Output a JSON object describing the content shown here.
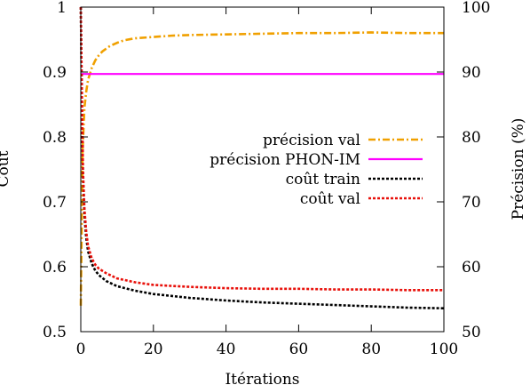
{
  "chart_data": {
    "type": "line",
    "title": "",
    "xlabel": "Itérations",
    "ylabel": "Coût",
    "y2label": "Précision (%)",
    "xlim": [
      0,
      100
    ],
    "ylim": [
      0.5,
      1.0
    ],
    "y2lim": [
      50,
      100
    ],
    "xticks": [
      "0",
      "20",
      "40",
      "60",
      "80",
      "100"
    ],
    "yticks": [
      "0.5",
      "0.6",
      "0.7",
      "0.8",
      "0.9",
      "1"
    ],
    "y2ticks": [
      "50",
      "60",
      "70",
      "80",
      "90",
      "100"
    ],
    "grid": false,
    "legend_position": "center-right",
    "series": [
      {
        "name": "précision val",
        "axis": "y2",
        "color": "#f0a000",
        "dash": "dashdot",
        "x": [
          0,
          0.5,
          1,
          1.5,
          2,
          3,
          4,
          5,
          6,
          8,
          10,
          12,
          15,
          20,
          25,
          30,
          40,
          50,
          60,
          70,
          80,
          90,
          100
        ],
        "y": [
          54,
          78,
          84.5,
          87,
          88.8,
          90.6,
          91.8,
          92.6,
          93.2,
          94.0,
          94.5,
          94.9,
          95.2,
          95.4,
          95.6,
          95.7,
          95.8,
          95.9,
          96.0,
          96.0,
          96.1,
          96.0,
          96.0
        ]
      },
      {
        "name": "précision PHON-IM",
        "axis": "y2",
        "color": "#ff00ff",
        "dash": "solid",
        "x": [
          0,
          100
        ],
        "y": [
          89.7,
          89.7
        ]
      },
      {
        "name": "coût train",
        "axis": "y",
        "color": "#000000",
        "dash": "dotted",
        "x": [
          0,
          0.3,
          0.6,
          1,
          1.5,
          2,
          3,
          4,
          5,
          7,
          10,
          15,
          20,
          30,
          40,
          50,
          60,
          70,
          80,
          90,
          100
        ],
        "y": [
          1.0,
          0.85,
          0.74,
          0.68,
          0.645,
          0.624,
          0.605,
          0.594,
          0.587,
          0.578,
          0.57,
          0.563,
          0.558,
          0.552,
          0.548,
          0.545,
          0.543,
          0.541,
          0.539,
          0.537,
          0.536
        ]
      },
      {
        "name": "coût val",
        "axis": "y",
        "color": "#e8100a",
        "dash": "dotted",
        "x": [
          0,
          0.3,
          0.6,
          1,
          1.5,
          2,
          3,
          4,
          5,
          7,
          10,
          15,
          20,
          30,
          40,
          50,
          60,
          70,
          80,
          90,
          100
        ],
        "y": [
          1.0,
          0.87,
          0.75,
          0.69,
          0.654,
          0.632,
          0.613,
          0.603,
          0.597,
          0.59,
          0.582,
          0.576,
          0.572,
          0.569,
          0.567,
          0.566,
          0.566,
          0.565,
          0.565,
          0.564,
          0.564
        ]
      }
    ]
  }
}
